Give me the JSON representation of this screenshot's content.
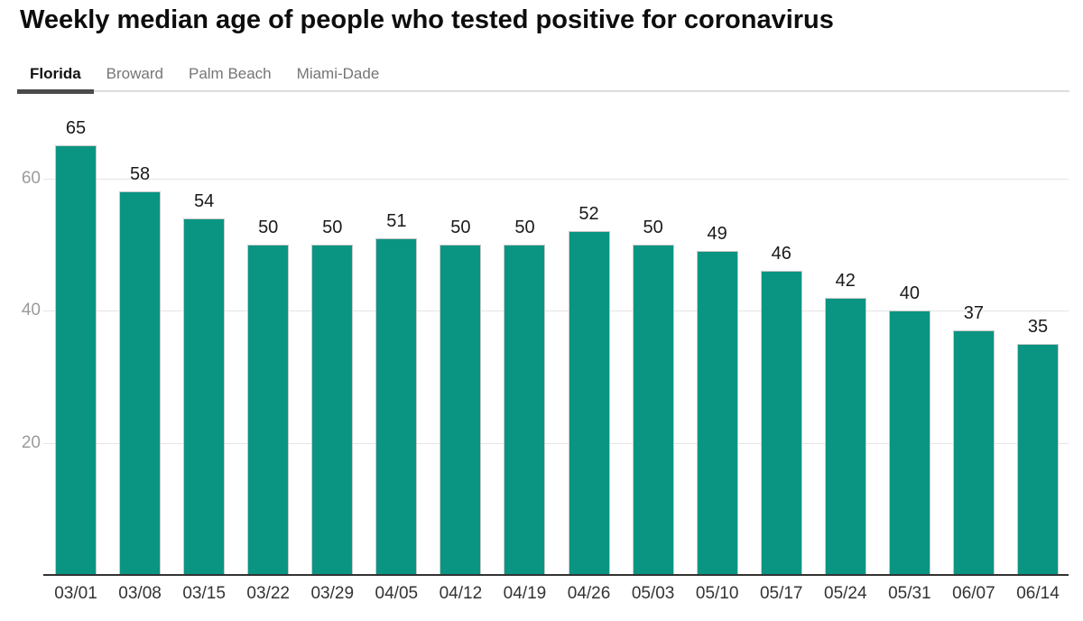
{
  "title": "Weekly median age of people who tested positive for coronavirus",
  "tabs": {
    "items": [
      {
        "label": "Florida",
        "active": true
      },
      {
        "label": "Broward",
        "active": false
      },
      {
        "label": "Palm Beach",
        "active": false
      },
      {
        "label": "Miami-Dade",
        "active": false
      }
    ]
  },
  "chart_data": {
    "type": "bar",
    "title": "Weekly median age of people who tested positive for coronavirus",
    "categories": [
      "03/01",
      "03/08",
      "03/15",
      "03/22",
      "03/29",
      "04/05",
      "04/12",
      "04/19",
      "04/26",
      "05/03",
      "05/10",
      "05/17",
      "05/24",
      "05/31",
      "06/07",
      "06/14"
    ],
    "values": [
      65,
      58,
      54,
      50,
      50,
      51,
      50,
      50,
      52,
      50,
      49,
      46,
      42,
      40,
      37,
      35
    ],
    "xlabel": "",
    "ylabel": "",
    "ylim": [
      0,
      72.5
    ],
    "yticks": [
      20,
      40,
      60
    ],
    "grid": "horizontal",
    "legend": "none",
    "value_labels": true,
    "bar_color": "#0a9582"
  },
  "colors": {
    "bar": "#0a9582",
    "bar_outline": "#c9c9c9",
    "axis_line": "#333333",
    "gridline": "#e5e5e5",
    "ytick_text": "#9b9b9b",
    "xtick_text": "#333333",
    "value_label_text": "#1a1a1a",
    "active_tab_text": "#111111",
    "inactive_tab_text": "#757575",
    "active_tab_underline": "#4a4a4a",
    "tab_divider": "#dcdcdc",
    "background": "#ffffff"
  }
}
